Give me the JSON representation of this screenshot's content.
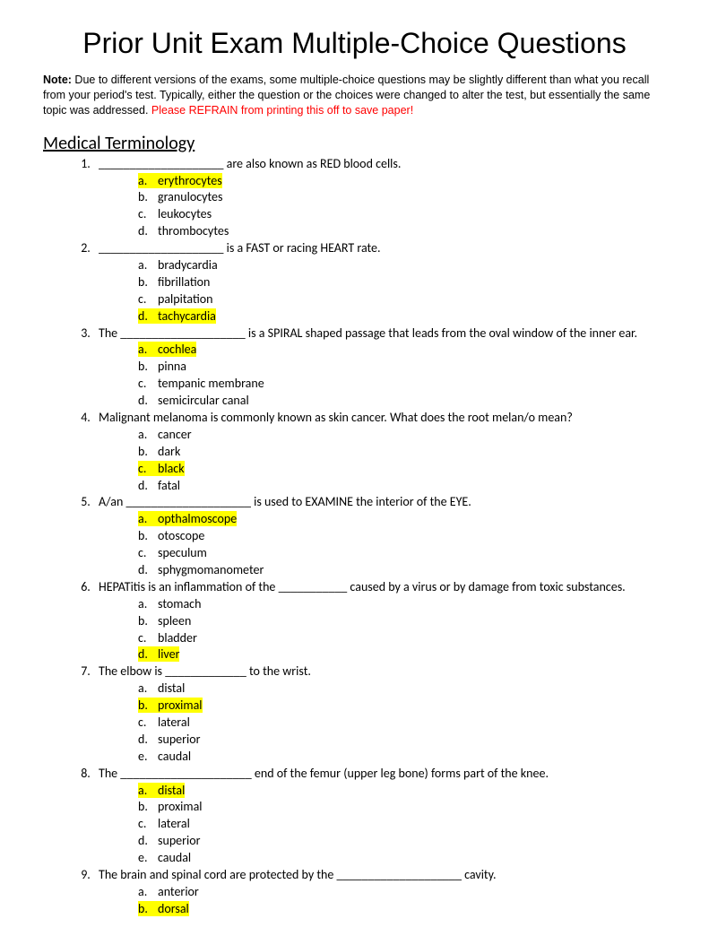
{
  "title": "Prior Unit Exam Multiple-Choice Questions",
  "note": {
    "label": "Note:",
    "body": "  Due to different versions of the exams, some multiple-choice questions may be slightly different than what you recall from your period's test.  Typically, either the question or the choices were changed to alter the test, but essentially the same topic was addressed.  ",
    "warn": "Please REFRAIN from printing this off to save paper!"
  },
  "section": "Medical Terminology",
  "highlight_color": "#ffff00",
  "warn_color": "#ff0000",
  "questions": [
    {
      "stem": "____________________ are also known as RED blood cells.",
      "options": [
        {
          "l": "a.",
          "t": "erythrocytes",
          "hl": true
        },
        {
          "l": "b.",
          "t": "granulocytes",
          "hl": false
        },
        {
          "l": "c.",
          "t": "leukocytes",
          "hl": false
        },
        {
          "l": "d.",
          "t": "thrombocytes",
          "hl": false
        }
      ]
    },
    {
      "stem": "____________________ is a FAST or racing HEART rate.",
      "options": [
        {
          "l": "a.",
          "t": "bradycardia",
          "hl": false
        },
        {
          "l": "b.",
          "t": "fibrillation",
          "hl": false
        },
        {
          "l": "c.",
          "t": "palpitation",
          "hl": false
        },
        {
          "l": "d.",
          "t": "tachycardia",
          "hl": true
        }
      ]
    },
    {
      "stem": "The ____________________ is a SPIRAL shaped passage that leads from the oval window of the inner ear.",
      "options": [
        {
          "l": "a.",
          "t": "cochlea",
          "hl": true
        },
        {
          "l": "b.",
          "t": "pinna",
          "hl": false
        },
        {
          "l": "c.",
          "t": "tempanic membrane",
          "hl": false
        },
        {
          "l": "d.",
          "t": "semicircular canal",
          "hl": false
        }
      ]
    },
    {
      "stem": "Malignant melanoma is commonly known as skin cancer. What does the root melan/o mean?",
      "options": [
        {
          "l": "a.",
          "t": "cancer",
          "hl": false
        },
        {
          "l": "b.",
          "t": "dark",
          "hl": false
        },
        {
          "l": "c.",
          "t": "black",
          "hl": true
        },
        {
          "l": "d.",
          "t": "fatal",
          "hl": false
        }
      ]
    },
    {
      "stem": "A/an ____________________ is used to EXAMINE the interior of the EYE.",
      "options": [
        {
          "l": "a.",
          "t": "opthalmoscope",
          "hl": true
        },
        {
          "l": "b.",
          "t": "otoscope",
          "hl": false
        },
        {
          "l": "c.",
          "t": "speculum",
          "hl": false
        },
        {
          "l": "d.",
          "t": "sphygmomanometer",
          "hl": false
        }
      ]
    },
    {
      "stem": "HEPATitis is an inflammation of the ___________ caused by a virus or by damage from toxic substances.",
      "options": [
        {
          "l": "a.",
          "t": "stomach",
          "hl": false
        },
        {
          "l": "b.",
          "t": "spleen",
          "hl": false
        },
        {
          "l": "c.",
          "t": "bladder",
          "hl": false
        },
        {
          "l": "d.",
          "t": "liver",
          "hl": true
        }
      ]
    },
    {
      "stem": "The elbow is _____________ to the wrist.",
      "options": [
        {
          "l": "a.",
          "t": "distal",
          "hl": false
        },
        {
          "l": "b.",
          "t": "proximal",
          "hl": true
        },
        {
          "l": "c.",
          "t": "lateral",
          "hl": false
        },
        {
          "l": "d.",
          "t": "superior",
          "hl": false
        },
        {
          "l": "e.",
          "t": "caudal",
          "hl": false
        }
      ]
    },
    {
      "stem": "The _____________________ end of the femur (upper leg bone) forms part of the knee.",
      "options": [
        {
          "l": "a.",
          "t": "distal",
          "hl": true
        },
        {
          "l": "b.",
          "t": "proximal",
          "hl": false
        },
        {
          "l": "c.",
          "t": "lateral",
          "hl": false
        },
        {
          "l": "d.",
          "t": "superior",
          "hl": false
        },
        {
          "l": "e.",
          "t": "caudal",
          "hl": false
        }
      ]
    },
    {
      "stem": "The brain and spinal cord are protected by the ____________________ cavity.",
      "options": [
        {
          "l": "a.",
          "t": "anterior",
          "hl": false
        },
        {
          "l": "b.",
          "t": "dorsal",
          "hl": true
        }
      ]
    }
  ]
}
